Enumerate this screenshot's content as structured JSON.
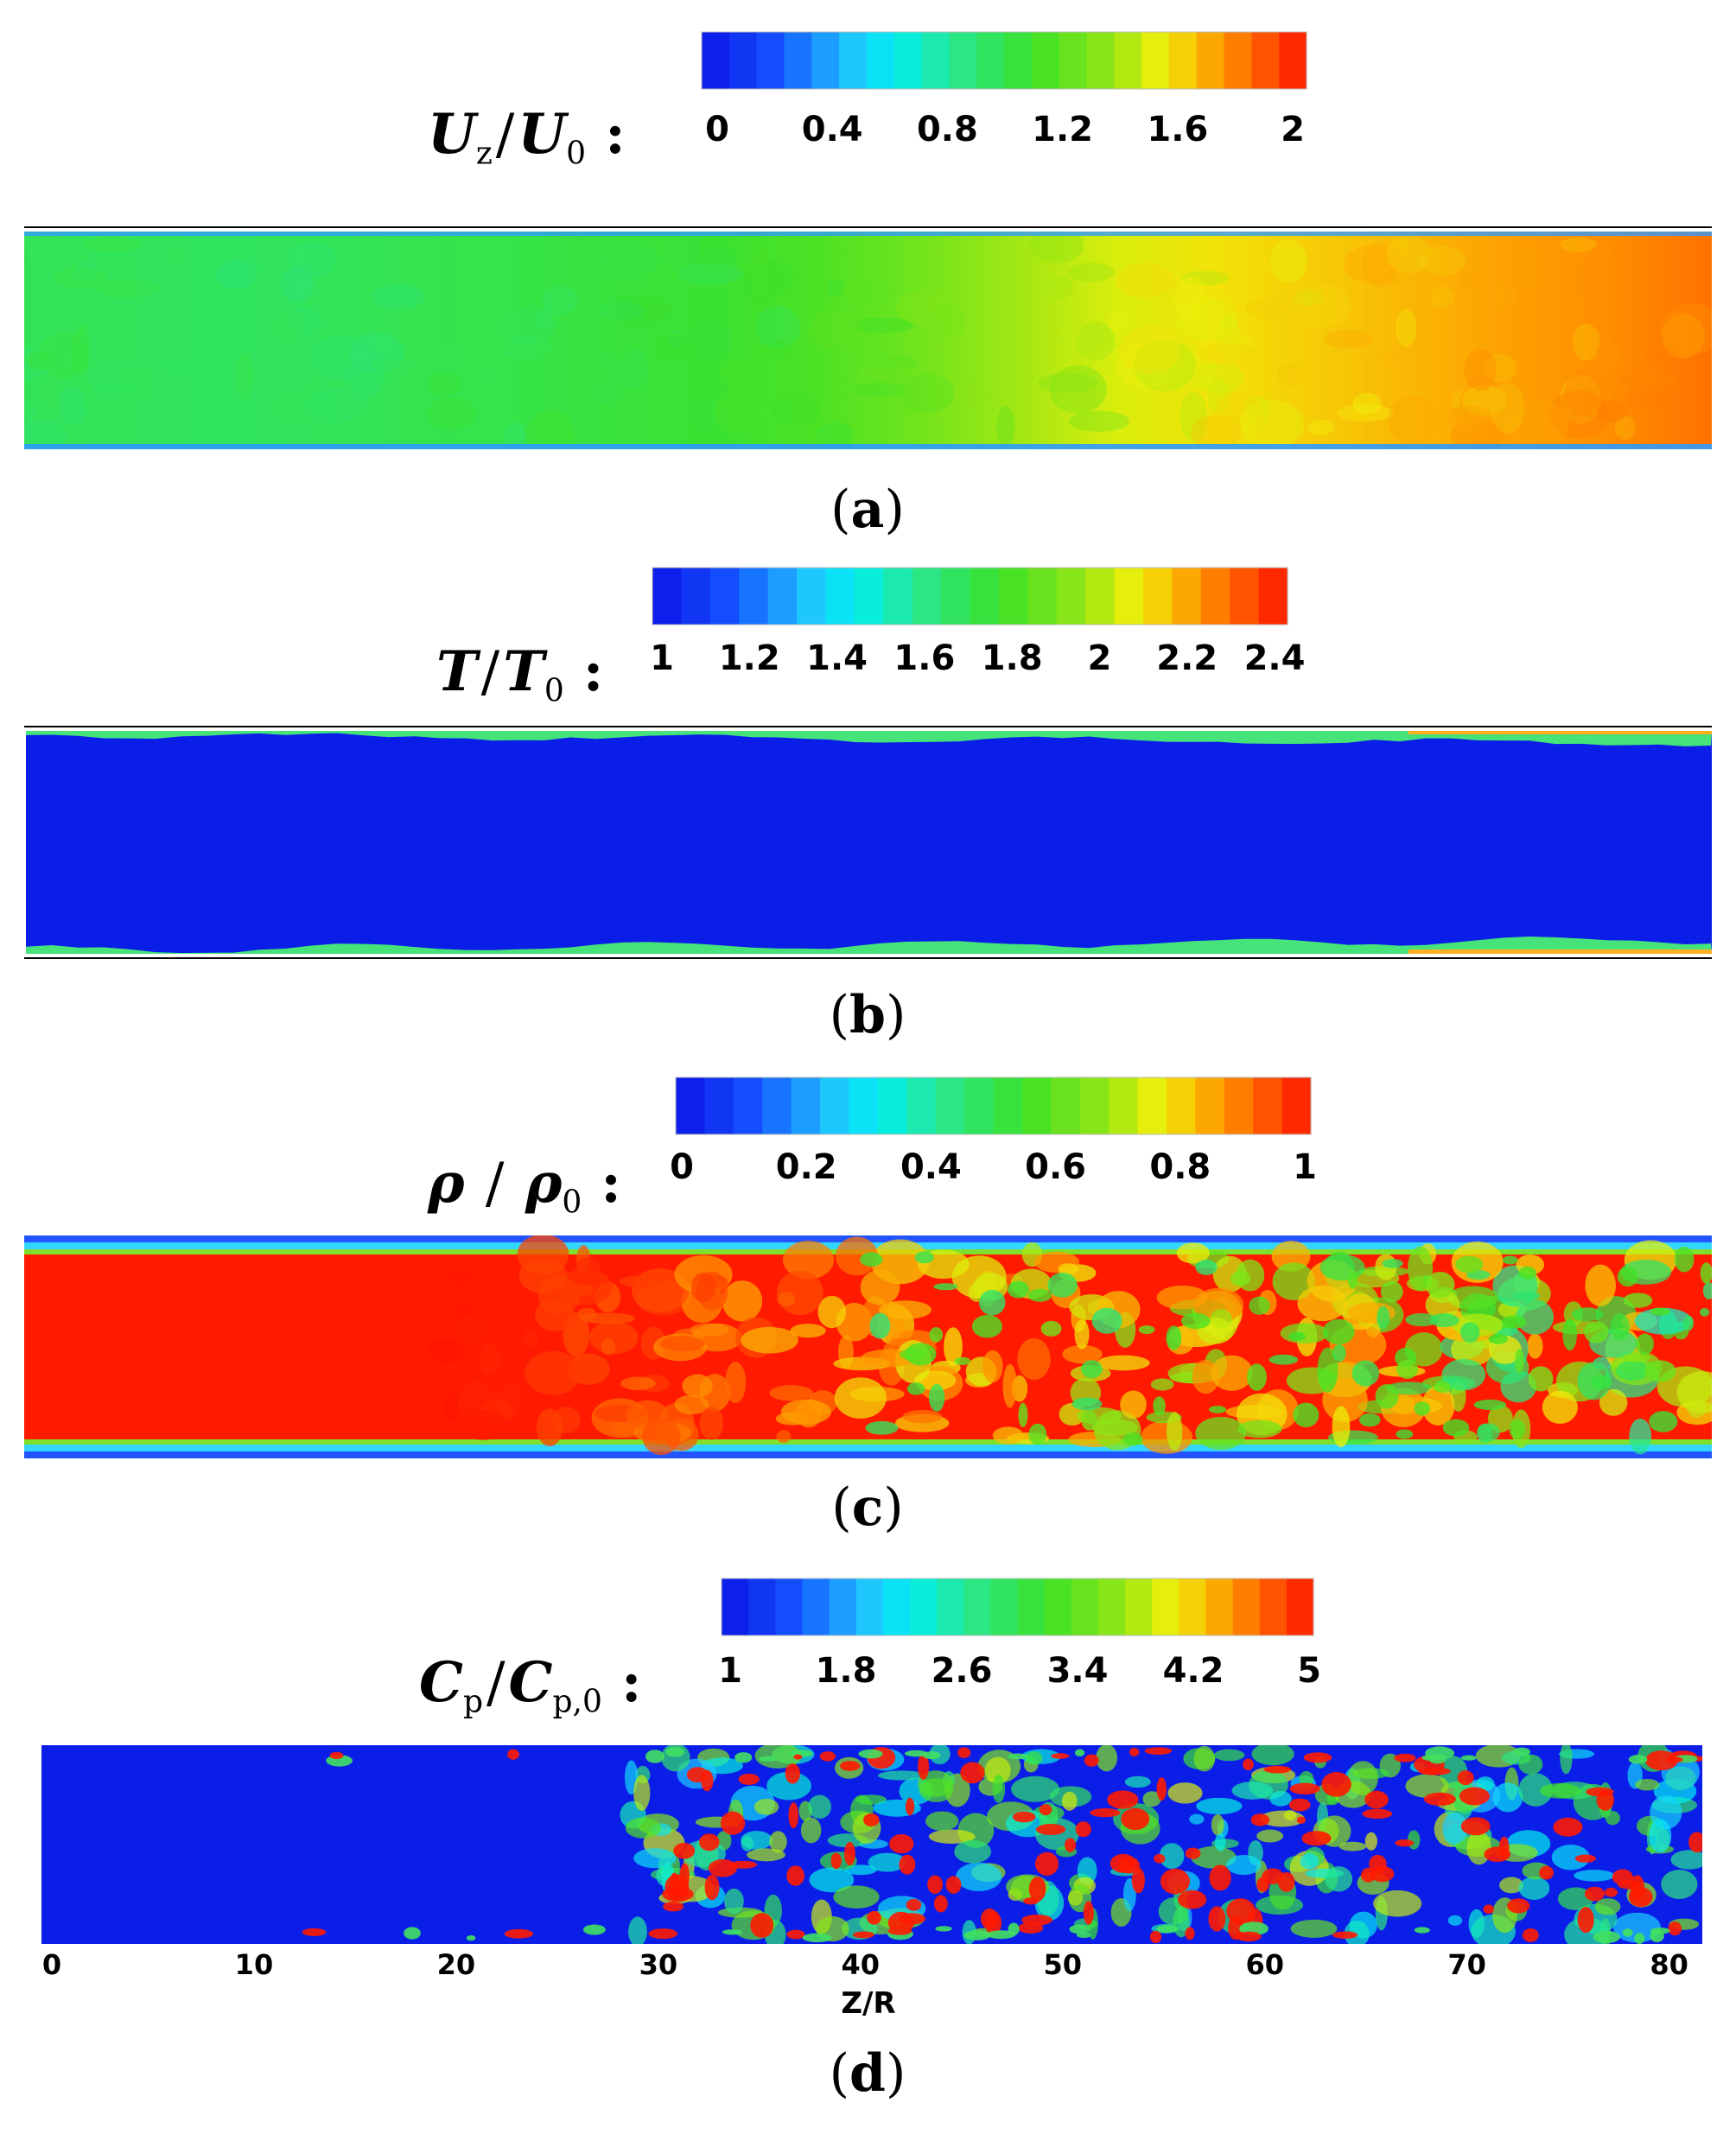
{
  "panels": [
    {
      "id": "a",
      "caption_letter": "a",
      "label": {
        "num": "U",
        "num_sub": "z",
        "sep": "/",
        "den": "U",
        "den_sub": "0",
        "colon": ":"
      },
      "colorbar": {
        "ticks": [
          "0",
          "0.4",
          "0.8",
          "1.2",
          "1.6",
          "2"
        ],
        "min": 0,
        "max": 2
      },
      "field_profile": [
        0.98,
        0.97,
        0.96,
        0.97,
        1.0,
        1.02,
        1.05,
        1.08,
        1.15,
        1.25,
        1.38,
        1.48,
        1.55,
        1.6,
        1.65,
        1.7,
        1.74,
        1.8
      ],
      "colors": {
        "boundary": "#2f9bff"
      }
    },
    {
      "id": "b",
      "caption_letter": "b",
      "label": {
        "num": "T",
        "num_sub": "",
        "sep": "/",
        "den": "T",
        "den_sub": "0",
        "colon": ":"
      },
      "colorbar": {
        "ticks": [
          "1",
          "1.2",
          "1.4",
          "1.6",
          "1.8",
          "2",
          "2.2",
          "2.4"
        ],
        "min": 1,
        "max": 2.4
      },
      "colors": {
        "core": "#0a1ee8",
        "edge": "#45e37a"
      }
    },
    {
      "id": "c",
      "caption_letter": "c",
      "label": {
        "num": "ρ",
        "num_sub": "",
        "sep": " / ",
        "den": "ρ",
        "den_sub": "0",
        "colon": ":"
      },
      "colorbar": {
        "ticks": [
          "0",
          "0.2",
          "0.4",
          "0.6",
          "0.8",
          "1"
        ],
        "min": 0,
        "max": 1
      },
      "colors": {
        "core": "#ff1a00",
        "edge": "#2255ff"
      }
    },
    {
      "id": "d",
      "caption_letter": "d",
      "label": {
        "num": "C",
        "num_sub": "p",
        "sep": "/",
        "den": "C",
        "den_sub": "p,0",
        "colon": ":"
      },
      "colorbar": {
        "ticks": [
          "1",
          "1.8",
          "2.6",
          "3.4",
          "4.2",
          "5"
        ],
        "min": 1,
        "max": 5
      },
      "colors": {
        "core": "#0a1ee8",
        "hot": "#ff1a00"
      }
    }
  ],
  "chart_data": {
    "type": "heatmap",
    "x_axis": {
      "label": "Z/R",
      "ticks": [
        "0",
        "10",
        "20",
        "30",
        "40",
        "50",
        "60",
        "70",
        "80"
      ],
      "range": [
        0,
        81
      ]
    },
    "fields": [
      {
        "variable": "U_z/U_0",
        "range": [
          0,
          2
        ],
        "trend": "increases downstream from about 1 to about 1.8"
      },
      {
        "variable": "T/T_0",
        "range": [
          1,
          2.4
        ],
        "trend": "core stays near 1, higher values only at wall"
      },
      {
        "variable": "rho/rho_0",
        "range": [
          0,
          1
        ],
        "trend": "core near 1 upstream, breaking into 0.4-0.9 patches downstream"
      },
      {
        "variable": "C_p/C_p,0",
        "range": [
          1,
          5
        ],
        "trend": "core near 1 upstream, scattered peaks up to 5 beyond Z/R about 28"
      }
    ]
  }
}
